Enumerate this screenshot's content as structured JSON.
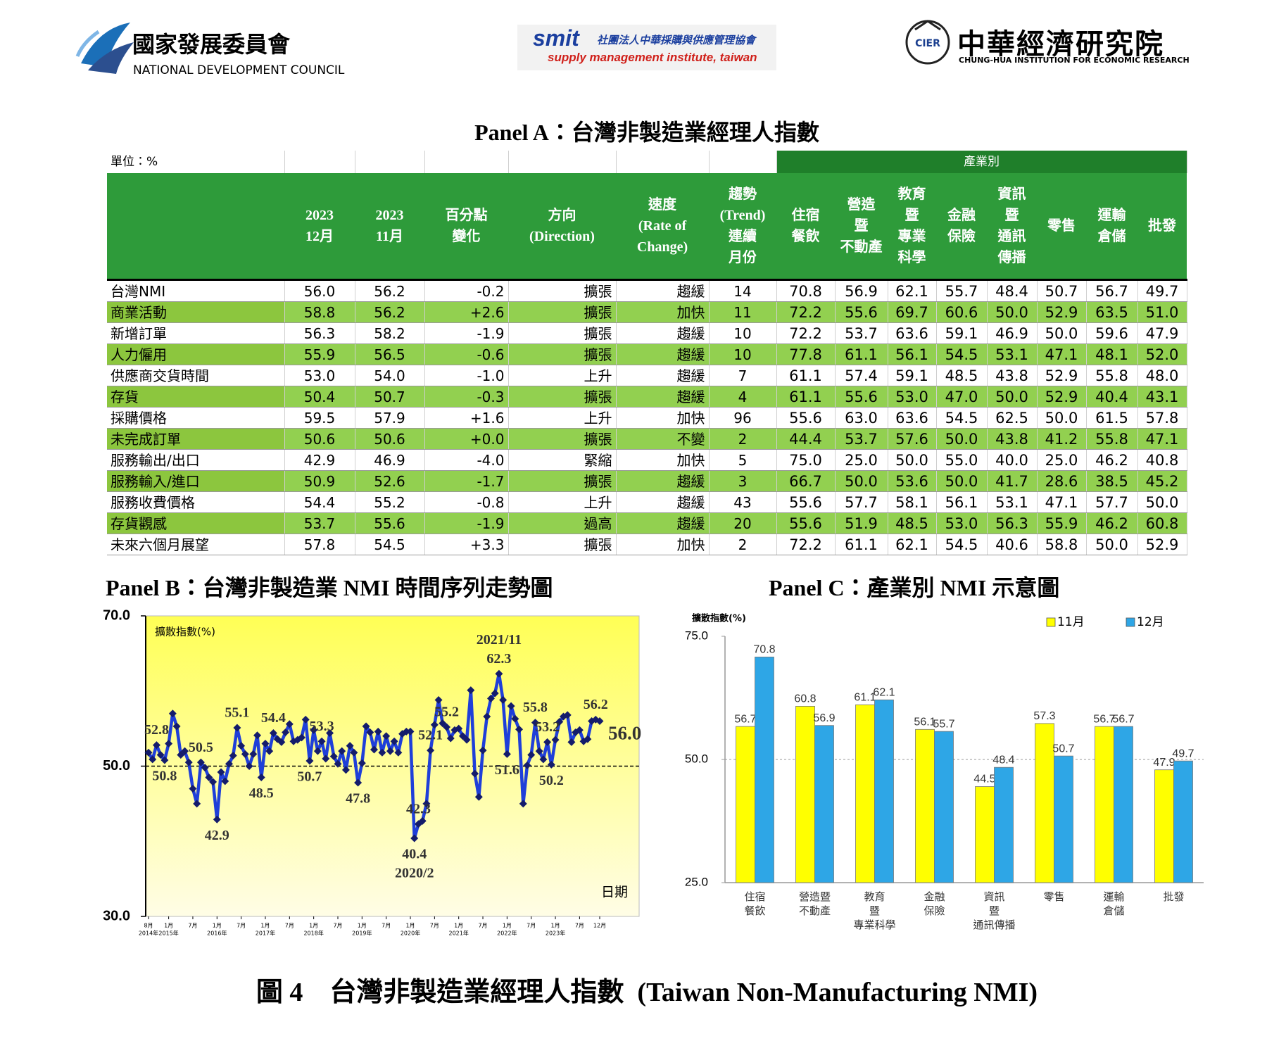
{
  "header": {
    "ndc_name": "國家發展委員會",
    "ndc_en": "NATIONAL DEVELOPMENT COUNCIL",
    "smit_logo": "smit",
    "smit_name": "社團法人中華採購與供應管理協會",
    "smit_en": "supply management institute, taiwan",
    "cier_logo": "CIER",
    "cier_name": "中華經濟研究院",
    "cier_en": "CHUNG-HUA INSTITUTION FOR ECONOMIC RESEARCH"
  },
  "panel_a": {
    "title": "Panel A：台灣非製造業經理人指數",
    "unit": "單位：%",
    "group_header": "產業別",
    "columns": [
      "",
      "2023\n12月",
      "2023\n11月",
      "百分點\n變化",
      "方向\n(Direction)",
      "速度\n(Rate of\nChange)",
      "趨勢\n(Trend)\n連續\n月份",
      "住宿\n餐飲",
      "營造\n暨\n不動產",
      "教育\n暨\n專業\n科學",
      "金融\n保險",
      "資訊\n暨\n通訊\n傳播",
      "零售",
      "運輸\n倉儲",
      "批發"
    ],
    "rows": [
      [
        "台灣NMI",
        "56.0",
        "56.2",
        "-0.2",
        "擴張",
        "趨緩",
        "14",
        "70.8",
        "56.9",
        "62.1",
        "55.7",
        "48.4",
        "50.7",
        "56.7",
        "49.7"
      ],
      [
        "商業活動",
        "58.8",
        "56.2",
        "+2.6",
        "擴張",
        "加快",
        "11",
        "72.2",
        "55.6",
        "69.7",
        "60.6",
        "50.0",
        "52.9",
        "63.5",
        "51.0"
      ],
      [
        "新增訂單",
        "56.3",
        "58.2",
        "-1.9",
        "擴張",
        "趨緩",
        "10",
        "72.2",
        "53.7",
        "63.6",
        "59.1",
        "46.9",
        "50.0",
        "59.6",
        "47.9"
      ],
      [
        "人力僱用",
        "55.9",
        "56.5",
        "-0.6",
        "擴張",
        "趨緩",
        "10",
        "77.8",
        "61.1",
        "56.1",
        "54.5",
        "53.1",
        "47.1",
        "48.1",
        "52.0"
      ],
      [
        "供應商交貨時間",
        "53.0",
        "54.0",
        "-1.0",
        "上升",
        "趨緩",
        "7",
        "61.1",
        "57.4",
        "59.1",
        "48.5",
        "43.8",
        "52.9",
        "55.8",
        "48.0"
      ],
      [
        "存貨",
        "50.4",
        "50.7",
        "-0.3",
        "擴張",
        "趨緩",
        "4",
        "61.1",
        "55.6",
        "53.0",
        "47.0",
        "50.0",
        "52.9",
        "40.4",
        "43.1"
      ],
      [
        "採購價格",
        "59.5",
        "57.9",
        "+1.6",
        "上升",
        "加快",
        "96",
        "55.6",
        "63.0",
        "63.6",
        "54.5",
        "62.5",
        "50.0",
        "61.5",
        "57.8"
      ],
      [
        "未完成訂單",
        "50.6",
        "50.6",
        "+0.0",
        "擴張",
        "不變",
        "2",
        "44.4",
        "53.7",
        "57.6",
        "50.0",
        "43.8",
        "41.2",
        "55.8",
        "47.1"
      ],
      [
        "服務輸出/出口",
        "42.9",
        "46.9",
        "-4.0",
        "緊縮",
        "加快",
        "5",
        "75.0",
        "25.0",
        "50.0",
        "55.0",
        "40.0",
        "25.0",
        "46.2",
        "40.8"
      ],
      [
        "服務輸入/進口",
        "50.9",
        "52.6",
        "-1.7",
        "擴張",
        "趨緩",
        "3",
        "66.7",
        "50.0",
        "53.6",
        "50.0",
        "41.7",
        "28.6",
        "38.5",
        "45.2"
      ],
      [
        "服務收費價格",
        "54.4",
        "55.2",
        "-0.8",
        "上升",
        "趨緩",
        "43",
        "55.6",
        "57.7",
        "58.1",
        "56.1",
        "53.1",
        "47.1",
        "57.7",
        "50.0"
      ],
      [
        "存貨觀感",
        "53.7",
        "55.6",
        "-1.9",
        "過高",
        "趨緩",
        "20",
        "55.6",
        "51.9",
        "48.5",
        "53.0",
        "56.3",
        "55.9",
        "46.2",
        "60.8"
      ],
      [
        "未來六個月展望",
        "57.8",
        "54.5",
        "+3.3",
        "擴張",
        "加快",
        "2",
        "72.2",
        "61.1",
        "62.1",
        "54.5",
        "40.6",
        "58.8",
        "50.0",
        "52.9"
      ]
    ]
  },
  "chart_data": [
    {
      "type": "line",
      "title": "Panel B：台灣非製造業 NMI 時間序列走勢圖",
      "y_label": "擴散指數(%)",
      "x_label": "日期",
      "x": [
        "2014-08",
        "2014-09",
        "2014-10",
        "2014-11",
        "2014-12",
        "2015-01",
        "2015-02",
        "2015-03",
        "2015-04",
        "2015-05",
        "2015-06",
        "2015-07",
        "2015-08",
        "2015-09",
        "2015-10",
        "2015-11",
        "2015-12",
        "2016-01",
        "2016-02",
        "2016-03",
        "2016-04",
        "2016-05",
        "2016-06",
        "2016-07",
        "2016-08",
        "2016-09",
        "2016-10",
        "2016-11",
        "2016-12",
        "2017-01",
        "2017-02",
        "2017-03",
        "2017-04",
        "2017-05",
        "2017-06",
        "2017-07",
        "2017-08",
        "2017-09",
        "2017-10",
        "2017-11",
        "2017-12",
        "2018-01",
        "2018-02",
        "2018-03",
        "2018-04",
        "2018-05",
        "2018-06",
        "2018-07",
        "2018-08",
        "2018-09",
        "2018-10",
        "2018-11",
        "2018-12",
        "2019-01",
        "2019-02",
        "2019-03",
        "2019-04",
        "2019-05",
        "2019-06",
        "2019-07",
        "2019-08",
        "2019-09",
        "2019-10",
        "2019-11",
        "2019-12",
        "2020-01",
        "2020-02",
        "2020-03",
        "2020-04",
        "2020-05",
        "2020-06",
        "2020-07",
        "2020-08",
        "2020-09",
        "2020-10",
        "2020-11",
        "2020-12",
        "2021-01",
        "2021-02",
        "2021-03",
        "2021-04",
        "2021-05",
        "2021-06",
        "2021-07",
        "2021-08",
        "2021-09",
        "2021-10",
        "2021-11",
        "2021-12",
        "2022-01",
        "2022-02",
        "2022-03",
        "2022-04",
        "2022-05",
        "2022-06",
        "2022-07",
        "2022-08",
        "2022-09",
        "2022-10",
        "2022-11",
        "2022-12",
        "2023-01",
        "2023-02",
        "2023-03",
        "2023-04",
        "2023-05",
        "2023-06",
        "2023-07",
        "2023-08",
        "2023-09",
        "2023-10",
        "2023-11",
        "2023-12"
      ],
      "series": [
        {
          "name": "NMI",
          "color": "#1f3fd9",
          "marker_color": "#141c6b",
          "values": [
            51.8,
            50.9,
            52.8,
            51.5,
            50.8,
            53.0,
            57.0,
            55.3,
            51.5,
            52.0,
            50.5,
            47.0,
            45.0,
            50.5,
            49.8,
            48.5,
            47.9,
            42.9,
            49.2,
            48.0,
            50.3,
            51.4,
            55.1,
            52.7,
            51.6,
            50.0,
            51.6,
            54.1,
            48.5,
            53.0,
            52.0,
            54.4,
            53.6,
            53.2,
            54.5,
            55.6,
            53.3,
            53.5,
            53.8,
            56.2,
            50.7,
            54.8,
            52.0,
            53.3,
            51.0,
            54.4,
            51.3,
            50.3,
            52.0,
            49.5,
            52.7,
            51.8,
            47.8,
            50.4,
            55.3,
            54.5,
            52.2,
            54.6,
            51.8,
            54.0,
            52.0,
            53.3,
            51.8,
            54.3,
            54.6,
            54.6,
            40.4,
            42.3,
            42.7,
            45.0,
            52.1,
            55.5,
            58.8,
            55.7,
            55.2,
            53.7,
            54.8,
            55.0,
            54.0,
            53.5,
            60.1,
            49.0,
            45.9,
            52.1,
            56.6,
            59.0,
            59.7,
            62.3,
            58.8,
            51.6,
            58.0,
            56.3,
            54.9,
            45.0,
            50.1,
            51.5,
            55.8,
            52.0,
            50.9,
            53.2,
            50.2,
            53.5,
            55.9,
            56.6,
            56.8,
            53.2,
            54.5,
            54.8,
            53.3,
            53.6,
            56.0,
            56.2,
            56.0
          ]
        }
      ],
      "ylim": [
        30,
        70
      ],
      "yticks": [
        {
          "value": 30,
          "label": "30.0"
        },
        {
          "value": 50,
          "label": "50.0"
        },
        {
          "value": 70,
          "label": "70.0"
        }
      ],
      "xticks": [
        {
          "value": "2014-08",
          "label": "8月",
          "year": "2014年"
        },
        {
          "value": "2015-01",
          "label": "1月",
          "year": "2015年"
        },
        {
          "value": "2015-07",
          "label": "7月"
        },
        {
          "value": "2016-01",
          "label": "1月",
          "year": "2016年"
        },
        {
          "value": "2016-07",
          "label": "7月"
        },
        {
          "value": "2017-01",
          "label": "1月",
          "year": "2017年"
        },
        {
          "value": "2017-07",
          "label": "7月"
        },
        {
          "value": "2018-01",
          "label": "1月",
          "year": "2018年"
        },
        {
          "value": "2018-07",
          "label": "7月"
        },
        {
          "value": "2019-01",
          "label": "1月",
          "year": "2019年"
        },
        {
          "value": "2019-07",
          "label": "7月"
        },
        {
          "value": "2020-01",
          "label": "1月",
          "year": "2020年"
        },
        {
          "value": "2020-07",
          "label": "7月"
        },
        {
          "value": "2021-01",
          "label": "1月",
          "year": "2021年"
        },
        {
          "value": "2021-07",
          "label": "7月"
        },
        {
          "value": "2022-01",
          "label": "1月",
          "year": "2022年"
        },
        {
          "value": "2022-07",
          "label": "7月"
        },
        {
          "value": "2023-01",
          "label": "1月",
          "year": "2023年"
        },
        {
          "value": "2023-07",
          "label": "7月"
        },
        {
          "value": "2023-12",
          "label": "12月"
        }
      ],
      "ref_line": 50,
      "annotations": [
        {
          "text": "52.8",
          "x": "2014-10"
        },
        {
          "text": "50.8",
          "x": "2014-12"
        },
        {
          "text": "50.5",
          "x": "2015-09"
        },
        {
          "text": "42.9",
          "x": "2016-01"
        },
        {
          "text": "55.1",
          "x": "2016-06"
        },
        {
          "text": "48.5",
          "x": "2016-12"
        },
        {
          "text": "54.4",
          "x": "2017-03"
        },
        {
          "text": "50.7",
          "x": "2017-12"
        },
        {
          "text": "53.3",
          "x": "2018-03"
        },
        {
          "text": "47.8",
          "x": "2018-12"
        },
        {
          "text": "40.4",
          "x": "2020-02"
        },
        {
          "text": "2020/2",
          "x": "2020-02"
        },
        {
          "text": "42.3",
          "x": "2020-03"
        },
        {
          "text": "52.1",
          "x": "2020-06"
        },
        {
          "text": "55.2",
          "x": "2020-10"
        },
        {
          "text": "62.3",
          "x": "2021-11"
        },
        {
          "text": "2021/11",
          "x": "2021-11"
        },
        {
          "text": "51.6",
          "x": "2022-01"
        },
        {
          "text": "55.8",
          "x": "2022-08"
        },
        {
          "text": "53.2",
          "x": "2022-11"
        },
        {
          "text": "50.2",
          "x": "2022-12"
        },
        {
          "text": "56.2",
          "x": "2023-11"
        },
        {
          "text": "56.0",
          "x": "2023-12"
        }
      ],
      "background": "yellow-gradient"
    },
    {
      "type": "bar",
      "title": "Panel C：產業別 NMI 示意圖",
      "y_label": "擴散指數(%)",
      "categories": [
        "住宿\n餐飲",
        "營造暨\n不動產",
        "教育\n暨\n專業科學",
        "金融\n保險",
        "資訊\n暨\n通訊傳播",
        "零售",
        "運輸\n倉儲",
        "批發"
      ],
      "series": [
        {
          "name": "11月",
          "color": "#ffff00",
          "values": [
            56.7,
            60.8,
            61.1,
            56.1,
            44.5,
            57.3,
            56.7,
            47.9
          ]
        },
        {
          "name": "12月",
          "color": "#2ea6e6",
          "values": [
            70.8,
            56.9,
            62.1,
            55.7,
            48.4,
            50.7,
            56.7,
            49.7
          ]
        }
      ],
      "ylim": [
        25,
        75
      ],
      "yticks": [
        {
          "value": 25,
          "label": "25.0"
        },
        {
          "value": 50,
          "label": "50.0"
        },
        {
          "value": 75,
          "label": "75.0"
        }
      ],
      "ref_line": 50,
      "legend": "top-right",
      "grid": false
    }
  ],
  "caption": "圖 4　台灣非製造業經理人指數  (Taiwan Non-Manufacturing NMI)"
}
